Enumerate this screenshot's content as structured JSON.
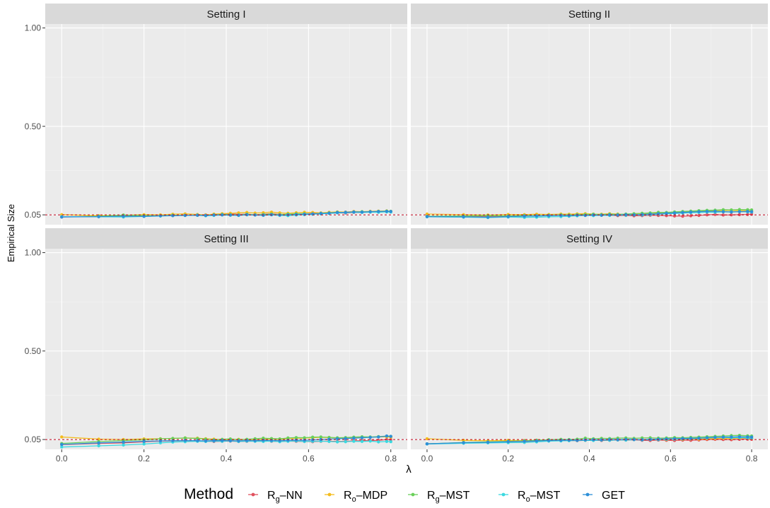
{
  "chart_data": {
    "type": "line",
    "facets": [
      "Setting I",
      "Setting II",
      "Setting III",
      "Setting IV"
    ],
    "xlabel": "λ",
    "ylabel": "Empirical Size",
    "xlim": [
      -0.04,
      0.84
    ],
    "ylim": [
      0.0,
      1.02
    ],
    "x_ticks": [
      "0.0",
      "0.2",
      "0.4",
      "0.6",
      "0.8"
    ],
    "x_tick_values": [
      0.0,
      0.2,
      0.4,
      0.6,
      0.8
    ],
    "y_ticks": [
      "0.05",
      "0.50",
      "1.00"
    ],
    "y_tick_values": [
      0.05,
      0.5,
      1.0
    ],
    "reference_line": 0.05,
    "grid": true,
    "legend": {
      "title": "Method",
      "position": "bottom",
      "entries": [
        {
          "base": "R",
          "sub": "g",
          "rest": "–NN",
          "color": "#E0515E"
        },
        {
          "base": "R",
          "sub": "o",
          "rest": "–MDP",
          "color": "#F4BC1C"
        },
        {
          "base": "R",
          "sub": "g",
          "rest": "–MST",
          "color": "#6AD05A"
        },
        {
          "base": "R",
          "sub": "o",
          "rest": "–MST",
          "color": "#3BD9E0"
        },
        {
          "base": "GET",
          "sub": "",
          "rest": "",
          "color": "#2D8FD8"
        }
      ]
    },
    "x": [
      0.0,
      0.09,
      0.15,
      0.2,
      0.24,
      0.27,
      0.3,
      0.33,
      0.35,
      0.37,
      0.39,
      0.41,
      0.43,
      0.45,
      0.47,
      0.49,
      0.51,
      0.53,
      0.55,
      0.57,
      0.59,
      0.61,
      0.63,
      0.65,
      0.67,
      0.69,
      0.71,
      0.73,
      0.75,
      0.77,
      0.79,
      0.8
    ],
    "panels": [
      {
        "series": [
          {
            "name": "Rg–NN",
            "values": [
              0.039,
              0.042,
              0.045,
              0.044,
              0.047,
              0.046,
              0.049,
              0.048,
              0.05,
              0.051,
              0.053,
              0.055,
              0.052,
              0.054,
              0.05,
              0.053,
              0.056,
              0.052,
              0.051,
              0.054,
              0.055,
              0.057,
              0.056,
              0.058,
              0.06,
              0.059,
              0.062,
              0.063,
              0.064,
              0.065,
              0.067,
              0.066
            ]
          },
          {
            "name": "Ro–MDP",
            "values": [
              0.051,
              0.046,
              0.048,
              0.051,
              0.05,
              0.053,
              0.055,
              0.052,
              0.05,
              0.054,
              0.056,
              0.058,
              0.06,
              0.062,
              0.059,
              0.061,
              0.064,
              0.06,
              0.058,
              0.061,
              0.063,
              0.062,
              0.06,
              0.063,
              0.065,
              0.064,
              0.067,
              0.066,
              0.068,
              0.069,
              0.07,
              0.068
            ]
          },
          {
            "name": "Rg–MST",
            "values": [
              0.04,
              0.043,
              0.049,
              0.046,
              0.045,
              0.048,
              0.047,
              0.049,
              0.046,
              0.05,
              0.052,
              0.051,
              0.049,
              0.053,
              0.05,
              0.052,
              0.054,
              0.051,
              0.053,
              0.055,
              0.056,
              0.054,
              0.058,
              0.06,
              0.063,
              0.062,
              0.064,
              0.066,
              0.065,
              0.067,
              0.069,
              0.068
            ]
          },
          {
            "name": "Ro–MST",
            "values": [
              0.041,
              0.04,
              0.039,
              0.042,
              0.044,
              0.046,
              0.047,
              0.048,
              0.045,
              0.047,
              0.049,
              0.048,
              0.047,
              0.05,
              0.049,
              0.048,
              0.05,
              0.047,
              0.046,
              0.049,
              0.051,
              0.053,
              0.055,
              0.057,
              0.06,
              0.061,
              0.063,
              0.062,
              0.064,
              0.063,
              0.065,
              0.064
            ]
          },
          {
            "name": "GET",
            "values": [
              0.039,
              0.041,
              0.043,
              0.042,
              0.045,
              0.046,
              0.047,
              0.048,
              0.047,
              0.049,
              0.05,
              0.049,
              0.048,
              0.051,
              0.049,
              0.048,
              0.051,
              0.049,
              0.05,
              0.052,
              0.053,
              0.055,
              0.057,
              0.059,
              0.062,
              0.063,
              0.065,
              0.064,
              0.066,
              0.067,
              0.068,
              0.067
            ]
          }
        ]
      },
      {
        "series": [
          {
            "name": "Rg–NN",
            "values": [
              0.041,
              0.04,
              0.042,
              0.044,
              0.046,
              0.045,
              0.047,
              0.049,
              0.05,
              0.048,
              0.05,
              0.051,
              0.049,
              0.048,
              0.046,
              0.047,
              0.045,
              0.046,
              0.048,
              0.047,
              0.046,
              0.044,
              0.043,
              0.045,
              0.047,
              0.05,
              0.052,
              0.049,
              0.05,
              0.051,
              0.052,
              0.053
            ]
          },
          {
            "name": "Ro–MDP",
            "values": [
              0.054,
              0.051,
              0.049,
              0.052,
              0.051,
              0.053,
              0.052,
              0.054,
              0.053,
              0.055,
              0.056,
              0.054,
              0.053,
              0.056,
              0.054,
              0.052,
              0.055,
              0.056,
              0.058,
              0.06,
              0.059,
              0.062,
              0.064,
              0.066,
              0.067,
              0.069,
              0.071,
              0.072,
              0.073,
              0.071,
              0.072,
              0.07
            ]
          },
          {
            "name": "Rg–MST",
            "values": [
              0.043,
              0.044,
              0.046,
              0.045,
              0.047,
              0.046,
              0.048,
              0.05,
              0.049,
              0.051,
              0.052,
              0.053,
              0.051,
              0.053,
              0.052,
              0.054,
              0.056,
              0.058,
              0.06,
              0.063,
              0.062,
              0.065,
              0.067,
              0.069,
              0.071,
              0.073,
              0.074,
              0.076,
              0.075,
              0.077,
              0.076,
              0.075
            ]
          },
          {
            "name": "Ro–MST",
            "values": [
              0.04,
              0.038,
              0.036,
              0.039,
              0.037,
              0.038,
              0.04,
              0.041,
              0.043,
              0.045,
              0.047,
              0.046,
              0.048,
              0.047,
              0.049,
              0.048,
              0.05,
              0.049,
              0.051,
              0.053,
              0.055,
              0.057,
              0.059,
              0.061,
              0.062,
              0.064,
              0.063,
              0.065,
              0.064,
              0.066,
              0.065,
              0.064
            ]
          },
          {
            "name": "GET",
            "values": [
              0.041,
              0.04,
              0.038,
              0.041,
              0.043,
              0.044,
              0.046,
              0.047,
              0.046,
              0.048,
              0.047,
              0.049,
              0.048,
              0.05,
              0.049,
              0.051,
              0.05,
              0.052,
              0.054,
              0.056,
              0.058,
              0.06,
              0.062,
              0.064,
              0.066,
              0.067,
              0.068,
              0.066,
              0.065,
              0.066,
              0.067,
              0.066
            ]
          }
        ]
      },
      {
        "series": [
          {
            "name": "Rg–NN",
            "values": [
              0.024,
              0.03,
              0.033,
              0.038,
              0.042,
              0.043,
              0.045,
              0.042,
              0.041,
              0.04,
              0.041,
              0.042,
              0.04,
              0.041,
              0.042,
              0.043,
              0.041,
              0.04,
              0.042,
              0.041,
              0.04,
              0.039,
              0.041,
              0.042,
              0.04,
              0.041,
              0.043,
              0.044,
              0.045,
              0.046,
              0.05,
              0.049
            ]
          },
          {
            "name": "Ro–MDP",
            "values": [
              0.063,
              0.052,
              0.05,
              0.053,
              0.054,
              0.055,
              0.058,
              0.057,
              0.054,
              0.052,
              0.05,
              0.049,
              0.051,
              0.05,
              0.049,
              0.051,
              0.052,
              0.05,
              0.054,
              0.056,
              0.057,
              0.059,
              0.061,
              0.06,
              0.058,
              0.057,
              0.059,
              0.061,
              0.062,
              0.063,
              0.064,
              0.062
            ]
          },
          {
            "name": "Rg–MST",
            "values": [
              0.03,
              0.04,
              0.045,
              0.048,
              0.053,
              0.056,
              0.058,
              0.055,
              0.052,
              0.048,
              0.051,
              0.053,
              0.049,
              0.051,
              0.054,
              0.057,
              0.055,
              0.053,
              0.058,
              0.06,
              0.059,
              0.062,
              0.063,
              0.061,
              0.059,
              0.06,
              0.062,
              0.064,
              0.063,
              0.065,
              0.067,
              0.066
            ]
          },
          {
            "name": "Ro–MST",
            "values": [
              0.012,
              0.018,
              0.022,
              0.027,
              0.033,
              0.037,
              0.039,
              0.041,
              0.04,
              0.042,
              0.041,
              0.043,
              0.04,
              0.042,
              0.041,
              0.04,
              0.042,
              0.039,
              0.041,
              0.043,
              0.04,
              0.041,
              0.042,
              0.04,
              0.038,
              0.039,
              0.041,
              0.04,
              0.042,
              0.038,
              0.04,
              0.039
            ]
          },
          {
            "name": "GET",
            "values": [
              0.025,
              0.033,
              0.037,
              0.041,
              0.043,
              0.044,
              0.045,
              0.044,
              0.043,
              0.044,
              0.045,
              0.044,
              0.043,
              0.045,
              0.044,
              0.046,
              0.045,
              0.044,
              0.046,
              0.047,
              0.046,
              0.048,
              0.05,
              0.052,
              0.054,
              0.055,
              0.057,
              0.059,
              0.061,
              0.063,
              0.068,
              0.066
            ]
          }
        ]
      },
      {
        "series": [
          {
            "name": "Rg–NN",
            "values": [
              0.028,
              0.033,
              0.035,
              0.038,
              0.04,
              0.041,
              0.043,
              0.044,
              0.045,
              0.044,
              0.046,
              0.047,
              0.045,
              0.046,
              0.048,
              0.047,
              0.049,
              0.046,
              0.045,
              0.047,
              0.046,
              0.045,
              0.047,
              0.046,
              0.048,
              0.05,
              0.051,
              0.05,
              0.049,
              0.051,
              0.052,
              0.051
            ]
          },
          {
            "name": "Ro–MDP",
            "values": [
              0.054,
              0.046,
              0.044,
              0.046,
              0.045,
              0.047,
              0.048,
              0.046,
              0.045,
              0.047,
              0.046,
              0.048,
              0.047,
              0.049,
              0.05,
              0.048,
              0.05,
              0.049,
              0.051,
              0.05,
              0.049,
              0.052,
              0.051,
              0.053,
              0.052,
              0.054,
              0.055,
              0.056,
              0.055,
              0.057,
              0.056,
              0.055
            ]
          },
          {
            "name": "Rg–MST",
            "values": [
              0.028,
              0.035,
              0.038,
              0.041,
              0.043,
              0.046,
              0.049,
              0.051,
              0.05,
              0.052,
              0.057,
              0.054,
              0.056,
              0.055,
              0.057,
              0.058,
              0.056,
              0.058,
              0.059,
              0.057,
              0.058,
              0.06,
              0.059,
              0.061,
              0.062,
              0.064,
              0.066,
              0.068,
              0.07,
              0.071,
              0.069,
              0.068
            ]
          },
          {
            "name": "Ro–MST",
            "values": [
              0.027,
              0.031,
              0.033,
              0.034,
              0.035,
              0.038,
              0.042,
              0.043,
              0.044,
              0.045,
              0.046,
              0.045,
              0.047,
              0.046,
              0.048,
              0.047,
              0.049,
              0.048,
              0.05,
              0.049,
              0.051,
              0.052,
              0.053,
              0.054,
              0.056,
              0.058,
              0.06,
              0.061,
              0.059,
              0.06,
              0.058,
              0.057
            ]
          },
          {
            "name": "GET",
            "values": [
              0.028,
              0.034,
              0.036,
              0.039,
              0.041,
              0.043,
              0.045,
              0.046,
              0.047,
              0.046,
              0.048,
              0.049,
              0.048,
              0.05,
              0.049,
              0.051,
              0.05,
              0.049,
              0.051,
              0.052,
              0.053,
              0.054,
              0.055,
              0.056,
              0.057,
              0.059,
              0.061,
              0.062,
              0.063,
              0.064,
              0.063,
              0.062
            ]
          }
        ]
      }
    ]
  }
}
